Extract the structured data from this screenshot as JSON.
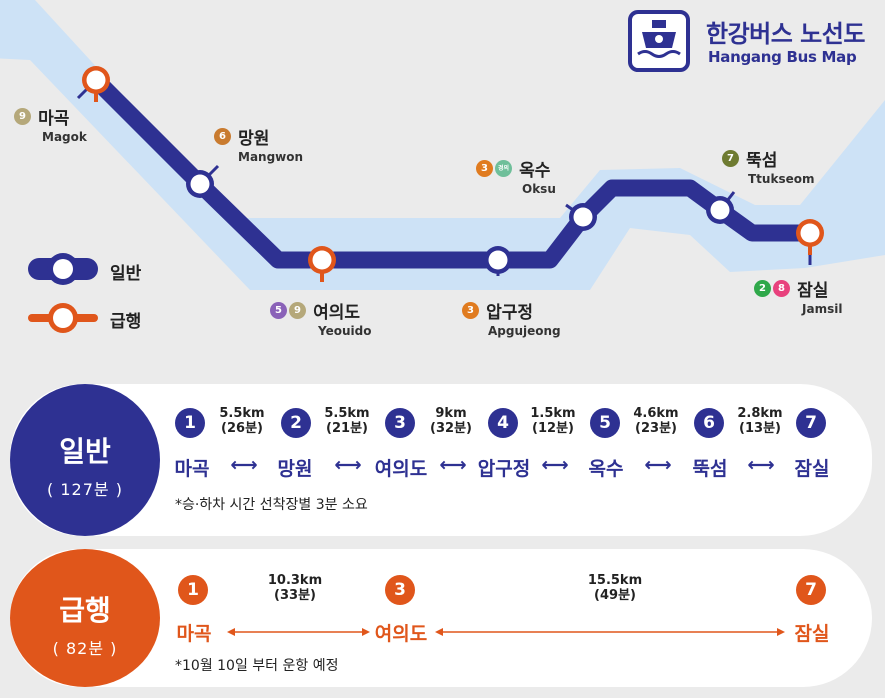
{
  "title": {
    "korean": "한강버스 노선도",
    "english": "Hangang Bus Map",
    "icon": "boat-logo-icon"
  },
  "colors": {
    "general": "#2e3192",
    "express": "#e0561b",
    "river": "#cde2f6"
  },
  "legend": {
    "general_label": "일반",
    "express_label": "급행"
  },
  "line_badge_colors": {
    "9": "#b5a87a",
    "6": "#c97b2f",
    "5": "#8a62b8",
    "3": "#e07b1f",
    "경의중앙": "#6fbf9a",
    "7": "#6e7b31",
    "2": "#2fa84a",
    "8": "#e8417d"
  },
  "map_stations": [
    {
      "ko": "마곡",
      "en": "Magok",
      "lines": [
        "9"
      ],
      "express": true
    },
    {
      "ko": "망원",
      "en": "Mangwon",
      "lines": [
        "6"
      ],
      "express": false
    },
    {
      "ko": "여의도",
      "en": "Yeouido",
      "lines": [
        "5",
        "9"
      ],
      "express": true
    },
    {
      "ko": "압구정",
      "en": "Apgujeong",
      "lines": [
        "3"
      ],
      "express": false
    },
    {
      "ko": "옥수",
      "en": "Oksu",
      "lines": [
        "3",
        "경의중앙"
      ],
      "express": false
    },
    {
      "ko": "뚝섬",
      "en": "Ttukseom",
      "lines": [
        "7"
      ],
      "express": false
    },
    {
      "ko": "잠실",
      "en": "Jamsil",
      "lines": [
        "2",
        "8"
      ],
      "express": true
    }
  ],
  "general": {
    "title": "일반",
    "duration": "( 127분 )",
    "stops": [
      {
        "num": "1",
        "name": "마곡"
      },
      {
        "num": "2",
        "name": "망원"
      },
      {
        "num": "3",
        "name": "여의도"
      },
      {
        "num": "4",
        "name": "압구정"
      },
      {
        "num": "5",
        "name": "옥수"
      },
      {
        "num": "6",
        "name": "뚝섬"
      },
      {
        "num": "7",
        "name": "잠실"
      }
    ],
    "segments": [
      {
        "distance": "5.5km",
        "time": "(26분)"
      },
      {
        "distance": "5.5km",
        "time": "(21분)"
      },
      {
        "distance": "9km",
        "time": "(32분)"
      },
      {
        "distance": "1.5km",
        "time": "(12분)"
      },
      {
        "distance": "4.6km",
        "time": "(23분)"
      },
      {
        "distance": "2.8km",
        "time": "(13분)"
      }
    ],
    "note": "*승·하차 시간 선착장별 3분 소요"
  },
  "express": {
    "title": "급행",
    "duration": "( 82분 )",
    "stops": [
      {
        "num": "1",
        "name": "마곡"
      },
      {
        "num": "3",
        "name": "여의도"
      },
      {
        "num": "7",
        "name": "잠실"
      }
    ],
    "segments": [
      {
        "distance": "10.3km",
        "time": "(33분)"
      },
      {
        "distance": "15.5km",
        "time": "(49분)"
      }
    ],
    "note": "*10월 10일 부터 운항 예정"
  }
}
